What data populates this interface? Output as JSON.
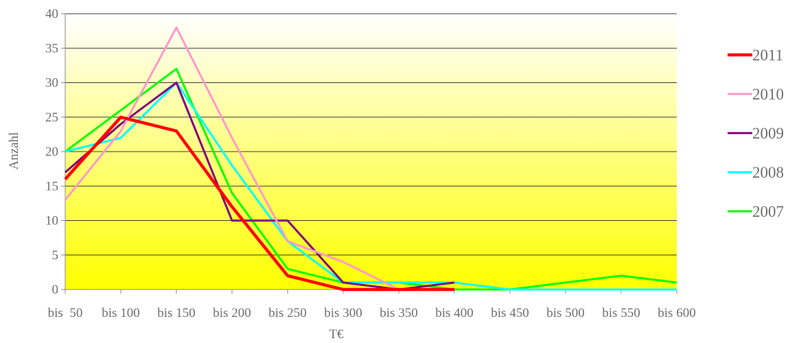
{
  "chart_data": {
    "type": "line",
    "title": "",
    "xlabel": "T€",
    "ylabel": "Anzahl",
    "ylim": [
      0,
      40
    ],
    "yticks": [
      0,
      5,
      10,
      15,
      20,
      25,
      30,
      35,
      40
    ],
    "grid": true,
    "legend_position": "right",
    "background_gradient": [
      "#ffffff",
      "#ffff00"
    ],
    "categories": [
      "bis  50",
      "bis 100",
      "bis 150",
      "bis 200",
      "bis 250",
      "bis 300",
      "bis 350",
      "bis 400",
      "bis 450",
      "bis 500",
      "bis 550",
      "bis 600"
    ],
    "series": [
      {
        "name": "2011",
        "color": "#ff0000",
        "values": [
          16,
          25,
          23,
          12,
          2,
          0,
          0,
          0,
          null,
          null,
          null,
          null
        ]
      },
      {
        "name": "2010",
        "color": "#ff99cc",
        "values": [
          13,
          23,
          38,
          22,
          7,
          4,
          0,
          null,
          null,
          null,
          null,
          null
        ]
      },
      {
        "name": "2009",
        "color": "#800080",
        "values": [
          17,
          24,
          30,
          10,
          10,
          1,
          0,
          1,
          null,
          null,
          null,
          null
        ]
      },
      {
        "name": "2008",
        "color": "#00ffff",
        "values": [
          20,
          22,
          30,
          18,
          7,
          1,
          1,
          1,
          0,
          0,
          0,
          0
        ]
      },
      {
        "name": "2007",
        "color": "#00ff00",
        "values": [
          20,
          26,
          32,
          14,
          3,
          1,
          1,
          0,
          0,
          1,
          2,
          1
        ]
      }
    ]
  }
}
